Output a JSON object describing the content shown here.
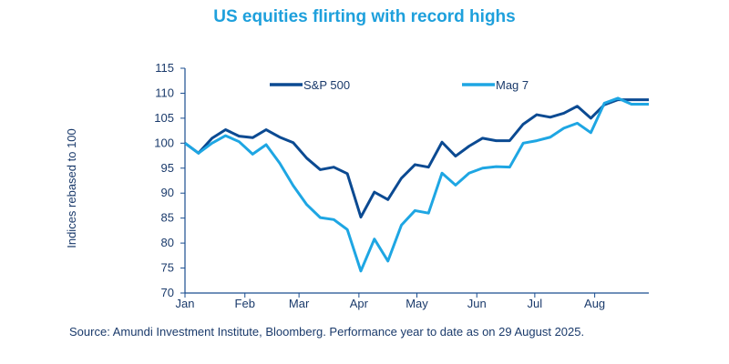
{
  "chart_data": {
    "type": "line",
    "title": "US equities  flirting  with record  highs",
    "ylabel": "Indices rebased to 100",
    "xlabel": "",
    "ylim": [
      70,
      115
    ],
    "yticks": [
      70,
      75,
      80,
      85,
      90,
      95,
      100,
      105,
      110,
      115
    ],
    "xtick_labels": [
      "Jan",
      "Feb",
      "Mar",
      "Apr",
      "May",
      "Jun",
      "Jul",
      "Aug"
    ],
    "xtick_dates": [
      "2025-01-01",
      "2025-02-01",
      "2025-03-01",
      "2025-04-01",
      "2025-05-01",
      "2025-06-01",
      "2025-07-01",
      "2025-08-01"
    ],
    "xlim": [
      "2025-01-01",
      "2025-08-29"
    ],
    "grid": false,
    "legend": "top",
    "x": [
      "2025-01-01",
      "2025-01-08",
      "2025-01-15",
      "2025-01-22",
      "2025-01-29",
      "2025-02-05",
      "2025-02-12",
      "2025-02-19",
      "2025-02-26",
      "2025-03-05",
      "2025-03-12",
      "2025-03-19",
      "2025-03-26",
      "2025-04-02",
      "2025-04-09",
      "2025-04-16",
      "2025-04-23",
      "2025-04-30",
      "2025-05-07",
      "2025-05-14",
      "2025-05-21",
      "2025-05-28",
      "2025-06-04",
      "2025-06-11",
      "2025-06-18",
      "2025-06-25",
      "2025-07-02",
      "2025-07-09",
      "2025-07-16",
      "2025-07-23",
      "2025-07-30",
      "2025-08-06",
      "2025-08-13",
      "2025-08-20",
      "2025-08-29"
    ],
    "series": [
      {
        "name": "S&P 500",
        "color": "#0b4a92",
        "values": [
          100,
          98,
          101,
          102.7,
          101.4,
          101.1,
          102.7,
          101.2,
          100.1,
          97,
          94.7,
          95.2,
          93.9,
          85.2,
          90.2,
          88.7,
          93,
          95.7,
          95.2,
          100.2,
          97.4,
          99.4,
          101,
          100.5,
          100.5,
          103.8,
          105.7,
          105.2,
          106,
          107.4,
          105,
          107.7,
          108.7,
          108.7,
          108.7
        ]
      },
      {
        "name": "Mag 7",
        "color": "#1ea6e3",
        "values": [
          100,
          98,
          100,
          101.5,
          100.3,
          97.8,
          99.7,
          96,
          91.5,
          87.7,
          85.1,
          84.7,
          82.7,
          74.4,
          80.8,
          76.4,
          83.6,
          86.5,
          86,
          94,
          91.6,
          94,
          95,
          95.3,
          95.2,
          100,
          100.5,
          101.2,
          103,
          104,
          102.1,
          108,
          109,
          107.8,
          107.8
        ]
      }
    ]
  },
  "source": "Source: Amundi Investment Institute, Bloomberg. Performance year to date as on 29 August 2025."
}
